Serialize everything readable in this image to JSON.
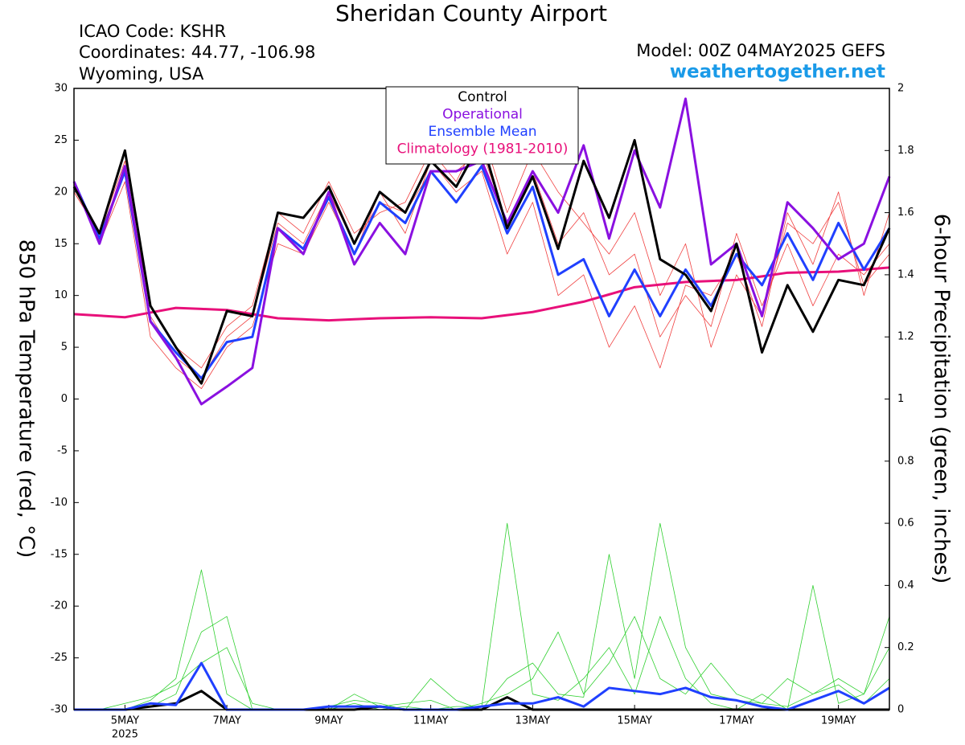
{
  "header": {
    "title": "Sheridan County Airport",
    "lines": [
      "ICAO Code: KSHR",
      "Coordinates: 44.77, -106.98",
      "Wyoming, USA"
    ],
    "model": "Model: 00Z 04MAY2025 GEFS",
    "site": "weathertogether.net"
  },
  "chart_data": {
    "type": "line",
    "ylabel": "850 hPa Temperature (red, °C)",
    "y2label": "6-hour Precipitation (green, inches)",
    "x": [
      4,
      4.5,
      5,
      5.5,
      6,
      6.5,
      7,
      7.5,
      8,
      8.5,
      9,
      9.5,
      10,
      10.5,
      11,
      11.5,
      12,
      12.5,
      13,
      13.5,
      14,
      14.5,
      15,
      15.5,
      16,
      16.5,
      17,
      17.5,
      18,
      18.5,
      19,
      19.5,
      20
    ],
    "xlim": [
      4,
      20
    ],
    "xticks": [
      {
        "value": 5,
        "label": "5MAY"
      },
      {
        "value": 7,
        "label": "7MAY"
      },
      {
        "value": 9,
        "label": "9MAY"
      },
      {
        "value": 11,
        "label": "11MAY"
      },
      {
        "value": 13,
        "label": "13MAY"
      },
      {
        "value": 15,
        "label": "15MAY"
      },
      {
        "value": 17,
        "label": "17MAY"
      },
      {
        "value": 19,
        "label": "19MAY"
      }
    ],
    "x_year_label": "2025",
    "ylim": [
      -30,
      30
    ],
    "yticks": [
      -30,
      -25,
      -20,
      -15,
      -10,
      -5,
      0,
      5,
      10,
      15,
      20,
      25,
      30
    ],
    "y2lim": [
      0,
      2
    ],
    "y2ticks": [
      0,
      0.2,
      0.4,
      0.6,
      0.8,
      1,
      1.2,
      1.4,
      1.6,
      1.8,
      2
    ],
    "series": [
      {
        "color": "#f04040",
        "values": [
          20,
          16,
          23,
          8,
          4,
          2,
          6,
          8,
          17,
          15,
          20,
          15,
          19,
          18,
          22,
          22,
          24,
          17,
          22,
          15,
          18,
          12,
          14,
          6,
          10,
          7,
          16,
          9,
          15,
          9,
          14,
          12,
          15
        ]
      },
      {
        "color": "#f04040",
        "values": [
          21,
          15,
          21,
          6,
          3,
          1,
          5,
          7,
          15,
          14,
          19,
          14,
          20,
          16,
          23,
          20,
          22,
          14,
          19,
          10,
          12,
          5,
          9,
          3,
          11,
          10,
          14,
          7,
          18,
          13,
          20,
          10,
          18
        ]
      },
      {
        "color": "#f04040",
        "values": [
          20,
          16,
          22,
          9,
          5,
          3,
          7,
          9,
          18,
          16,
          21,
          16,
          18,
          19,
          24,
          21,
          26,
          18,
          24,
          20,
          17,
          14,
          18,
          10,
          15,
          5,
          12,
          8,
          17,
          15,
          19,
          11,
          14
        ]
      },
      {
        "color": "#30d030",
        "axis": "y2",
        "values": [
          0,
          0,
          0,
          0.03,
          0.1,
          0.45,
          0.05,
          0,
          0,
          0,
          0,
          0.02,
          0,
          0.01,
          0,
          0.01,
          0.01,
          0.6,
          0.05,
          0.03,
          0.1,
          0.2,
          0.05,
          0.3,
          0.1,
          0.02,
          0,
          0.05,
          0,
          0.4,
          0.02,
          0.05,
          0.2
        ]
      },
      {
        "color": "#30d030",
        "axis": "y2",
        "values": [
          0,
          0,
          0,
          0.01,
          0.05,
          0.25,
          0.3,
          0,
          0,
          0,
          0.01,
          0.03,
          0.02,
          0,
          0.1,
          0.03,
          0,
          0.1,
          0.15,
          0.05,
          0.04,
          0.5,
          0.1,
          0.6,
          0.2,
          0.05,
          0.03,
          0.02,
          0.01,
          0.05,
          0.08,
          0.02,
          0.1
        ]
      },
      {
        "color": "#30d030",
        "axis": "y2",
        "values": [
          0,
          0,
          0.02,
          0.04,
          0.08,
          0.15,
          0.2,
          0.02,
          0,
          0,
          0,
          0.05,
          0.01,
          0.02,
          0.03,
          0,
          0.02,
          0.05,
          0.1,
          0.25,
          0.05,
          0.15,
          0.3,
          0.1,
          0.05,
          0.15,
          0.05,
          0.02,
          0.1,
          0.05,
          0.1,
          0.05,
          0.3
        ]
      },
      {
        "color": "#000000",
        "axis": "y2",
        "values": [
          0,
          0,
          0,
          0.01,
          0.02,
          0.06,
          0,
          0,
          0,
          0,
          0,
          0,
          0.01,
          0,
          0,
          0,
          0,
          0.04,
          0,
          0,
          0,
          0,
          0,
          0,
          0,
          0,
          0,
          0,
          0,
          0,
          0,
          0,
          0
        ]
      },
      {
        "color": "#2040ff",
        "axis": "y2",
        "values": [
          0,
          0,
          0,
          0.02,
          0.015,
          0.15,
          0,
          0,
          0,
          0,
          0.01,
          0.01,
          0.01,
          0,
          0,
          0,
          0.01,
          0.02,
          0.02,
          0.04,
          0.01,
          0.07,
          0.06,
          0.05,
          0.07,
          0.04,
          0.03,
          0.01,
          0,
          0.03,
          0.06,
          0.02,
          0.07
        ]
      },
      {
        "name": "Climatology (1981-2010)",
        "color": "#e8107a",
        "values": [
          8.2,
          8.05,
          7.9,
          8.35,
          8.8,
          8.7,
          8.6,
          8.2,
          7.8,
          7.7,
          7.6,
          7.7,
          7.8,
          7.85,
          7.9,
          7.85,
          7.8,
          8.1,
          8.4,
          8.9,
          9.4,
          10.1,
          10.8,
          11.05,
          11.3,
          11.4,
          11.5,
          11.85,
          12.2,
          12.25,
          12.3,
          12.5,
          12.7
        ]
      },
      {
        "name": "Ensemble Mean",
        "color": "#2040ff",
        "values": [
          21,
          15.5,
          22,
          7.5,
          4.5,
          2,
          5.5,
          6,
          16.5,
          14.5,
          19.5,
          14,
          19,
          17,
          22,
          19,
          22.5,
          16,
          20.5,
          12,
          13.5,
          8,
          12.5,
          8,
          12.5,
          9,
          14,
          11,
          16,
          11.5,
          17,
          12.5,
          16.5
        ]
      },
      {
        "name": "Operational",
        "color": "#8a10e0",
        "values": [
          21,
          15,
          22.5,
          7.5,
          4,
          -0.5,
          1.2,
          3,
          16.5,
          14,
          20,
          13,
          17,
          14,
          22,
          22,
          23,
          17,
          22,
          18,
          24.5,
          15.5,
          24,
          18.5,
          29,
          13,
          15,
          8,
          19,
          16.5,
          13.5,
          15,
          21.5
        ]
      },
      {
        "name": "Control",
        "color": "#000000",
        "values": [
          20.5,
          16,
          24,
          9,
          5,
          1.5,
          8.5,
          8,
          18,
          17.5,
          20.5,
          15,
          20,
          18,
          23,
          20.5,
          25,
          16.5,
          21.5,
          14.5,
          23,
          17.5,
          25,
          13.5,
          12,
          8.5,
          15,
          4.5,
          11,
          6.5,
          11.5,
          11,
          16.5
        ]
      }
    ]
  }
}
